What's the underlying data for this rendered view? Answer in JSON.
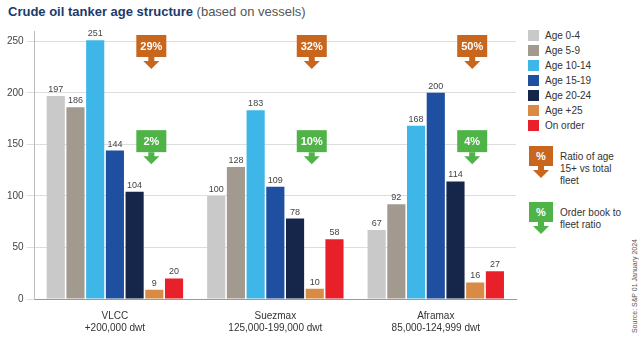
{
  "chart_data": {
    "type": "bar",
    "title": "Crude oil tanker age structure",
    "subtitle": "(based on vessels)",
    "categories": [
      [
        "VLCC",
        "+200,000 dwt"
      ],
      [
        "Suezmax",
        "125,000-199,000 dwt"
      ],
      [
        "Aframax",
        "85,000-124,999 dwt"
      ]
    ],
    "series": [
      {
        "name": "Age 0-4",
        "color": "#c9c9c9",
        "values": [
          197,
          100,
          67
        ]
      },
      {
        "name": "Age 5-9",
        "color": "#a39a8f",
        "values": [
          186,
          128,
          92
        ]
      },
      {
        "name": "Age 10-14",
        "color": "#3fb6e8",
        "values": [
          251,
          183,
          168
        ]
      },
      {
        "name": "Age 15-19",
        "color": "#1f4fa0",
        "values": [
          144,
          109,
          200
        ]
      },
      {
        "name": "Age 20-24",
        "color": "#16264a",
        "values": [
          104,
          78,
          114
        ]
      },
      {
        "name": "Age +25",
        "color": "#d98a45",
        "values": [
          9,
          10,
          16
        ]
      },
      {
        "name": "On order",
        "color": "#e8202a",
        "values": [
          20,
          58,
          27
        ]
      }
    ],
    "ylim": [
      0,
      260
    ],
    "yticks": [
      0,
      50,
      100,
      150,
      200,
      250
    ],
    "grid": true,
    "legend": "right",
    "data_labels": true,
    "annotations": [
      {
        "name": "Ratio of age 15+ vs total fleet",
        "symbol": "%",
        "color": "#c8661e",
        "values": [
          29,
          32,
          50
        ],
        "value_labels": [
          "29%",
          "32%",
          "50%"
        ]
      },
      {
        "name": "Order book to fleet ratio",
        "symbol": "%",
        "color": "#4fb348",
        "values": [
          2,
          10,
          4
        ],
        "value_labels": [
          "2%",
          "10%",
          "4%"
        ]
      }
    ],
    "source": "Source: S&P 01 January 2024"
  }
}
